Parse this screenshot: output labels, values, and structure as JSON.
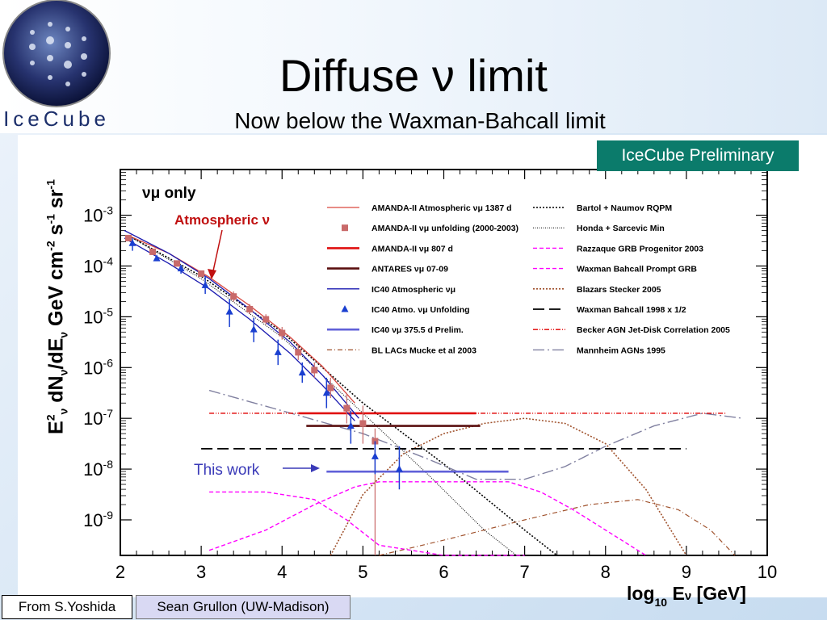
{
  "slide": {
    "title": "Diffuse ν limit",
    "subtitle": "Now below the Waxman-Bahcall limit",
    "logo_text": "IceCube",
    "badge": "IceCube Preliminary",
    "footer_left": "From S.Yoshida",
    "footer_right": "Sean Grullon (UW-Madison)"
  },
  "chart_data": {
    "type": "line",
    "xlabel": "log10 Eν [GeV]",
    "ylabel": "E2ν dNν/dEν GeV cm-2 s-1 sr-1",
    "xlim": [
      2,
      10
    ],
    "ylim_log10": [
      -9.7,
      -2.1
    ],
    "x_ticks": [
      "2",
      "3",
      "4",
      "5",
      "6",
      "7",
      "8",
      "9",
      "10"
    ],
    "y_ticks": [
      {
        "base": "10",
        "exp": "-3",
        "v": -3
      },
      {
        "base": "10",
        "exp": "-4",
        "v": -4
      },
      {
        "base": "10",
        "exp": "-5",
        "v": -5
      },
      {
        "base": "10",
        "exp": "-6",
        "v": -6
      },
      {
        "base": "10",
        "exp": "-7",
        "v": -7
      },
      {
        "base": "10",
        "exp": "-8",
        "v": -8
      },
      {
        "base": "10",
        "exp": "-9",
        "v": -9
      }
    ],
    "annotations": {
      "numu_only": "νμ only",
      "atmospheric": "Atmospheric ν",
      "this_work": "This work"
    },
    "legend": [
      {
        "name": "AMANDA-II Atmospheric νμ 1387 d",
        "style": "solid",
        "color": "#d9473f",
        "marker": ""
      },
      {
        "name": "AMANDA-II νμ unfolding (2000-2003)",
        "style": "marker",
        "color": "#c96a6a",
        "marker": "square"
      },
      {
        "name": "AMANDA-II νμ 807 d",
        "style": "solid-thick",
        "color": "#e01010",
        "marker": ""
      },
      {
        "name": "ANTARES νμ 07-09",
        "style": "solid-thick",
        "color": "#5a0f0f",
        "marker": ""
      },
      {
        "name": "IC40 Atmospheric νμ",
        "style": "solid",
        "color": "#1a1ab0",
        "marker": ""
      },
      {
        "name": "IC40 Atmo. νμ Unfolding",
        "style": "marker",
        "color": "#1a3fd0",
        "marker": "triangle"
      },
      {
        "name": "IC40 νμ 375.5 d Prelim.",
        "style": "solid-thick",
        "color": "#6060d8",
        "marker": ""
      },
      {
        "name": "BL LACs Mucke et al 2003",
        "style": "dashdot",
        "color": "#a0522d",
        "marker": ""
      },
      {
        "name": "Bartol + Naumov RQPM",
        "style": "dotted",
        "color": "#000000",
        "marker": ""
      },
      {
        "name": "Honda + Sarcevic Min",
        "style": "fine-dotted",
        "color": "#000000",
        "marker": ""
      },
      {
        "name": "Razzaque GRB Progenitor 2003",
        "style": "dashed",
        "color": "#ff00ff",
        "marker": ""
      },
      {
        "name": "Waxman Bahcall Prompt GRB",
        "style": "dashed",
        "color": "#ff00ff",
        "marker": ""
      },
      {
        "name": "Blazars Stecker 2005",
        "style": "dotted",
        "color": "#a0522d",
        "marker": ""
      },
      {
        "name": "Waxman Bahcall 1998 x 1/2",
        "style": "longdash",
        "color": "#000000",
        "marker": ""
      },
      {
        "name": "Becker AGN Jet-Disk Correlation 2005",
        "style": "dashdotdot",
        "color": "#e00000",
        "marker": ""
      },
      {
        "name": "Mannheim AGNs 1995",
        "style": "dashdot-long",
        "color": "#8080a0",
        "marker": ""
      }
    ],
    "series": [
      {
        "key": "amanda_atmo",
        "x": [
          2.1,
          2.6,
          3.1,
          3.6,
          4.1,
          4.5,
          4.9
        ],
        "y": [
          -3.4,
          -3.75,
          -4.22,
          -4.78,
          -5.4,
          -5.98,
          -6.7
        ]
      },
      {
        "key": "ic40_atmo_upper",
        "x": [
          2.05,
          2.6,
          3.1,
          3.6,
          4.1,
          4.5,
          4.95
        ],
        "y": [
          -3.3,
          -3.75,
          -4.25,
          -4.85,
          -5.5,
          -6.15,
          -7.0
        ]
      },
      {
        "key": "ic40_atmo_lower",
        "x": [
          2.05,
          2.6,
          3.1,
          3.6,
          4.1,
          4.5,
          4.9
        ],
        "y": [
          -3.45,
          -3.95,
          -4.45,
          -5.05,
          -5.72,
          -6.35,
          -7.05
        ]
      },
      {
        "key": "bartol",
        "x": [
          2.1,
          3.0,
          4.0,
          5.0,
          6.0,
          7.0,
          7.4
        ],
        "y": [
          -3.4,
          -4.2,
          -5.3,
          -6.7,
          -7.9,
          -9.2,
          -9.7
        ]
      },
      {
        "key": "honda",
        "x": [
          2.1,
          3.0,
          4.0,
          5.0,
          5.8,
          6.5,
          6.9
        ],
        "y": [
          -3.4,
          -4.25,
          -5.4,
          -6.9,
          -8.1,
          -9.2,
          -9.7
        ]
      },
      {
        "key": "amanda_unfold",
        "x": [
          2.1,
          2.4,
          2.7,
          3.0,
          3.4,
          3.6,
          3.8,
          4.0,
          4.2,
          4.4,
          4.6,
          4.8,
          5.0,
          5.15
        ],
        "y": [
          -3.45,
          -3.72,
          -3.95,
          -4.15,
          -4.6,
          -4.85,
          -5.05,
          -5.32,
          -5.7,
          -6.05,
          -6.4,
          -6.8,
          -7.1,
          -7.45
        ]
      },
      {
        "key": "amanda_unfold_err_lo",
        "x": [
          2.1,
          2.4,
          2.7,
          3.0,
          3.4,
          3.6,
          3.8,
          4.0,
          4.2,
          4.4,
          4.6,
          4.8,
          5.0,
          5.15
        ],
        "y": [
          -3.5,
          -3.77,
          -4.0,
          -4.2,
          -4.7,
          -4.95,
          -5.15,
          -5.45,
          -5.85,
          -6.2,
          -6.6,
          -7.1,
          -7.5,
          -9.7
        ]
      },
      {
        "key": "amanda_unfold_err_hi",
        "x": [
          2.1,
          2.4,
          2.7,
          3.0,
          3.4,
          3.6,
          3.8,
          4.0,
          4.2,
          4.4,
          4.6,
          4.8,
          5.0,
          5.15
        ],
        "y": [
          -3.4,
          -3.67,
          -3.9,
          -4.1,
          -4.5,
          -4.75,
          -4.95,
          -5.2,
          -5.55,
          -5.9,
          -6.2,
          -6.5,
          -6.75,
          -7.2
        ]
      },
      {
        "key": "ic40_unfold",
        "x": [
          2.15,
          2.45,
          2.75,
          3.05,
          3.35,
          3.65,
          3.95,
          4.25,
          4.55,
          4.85,
          5.15,
          5.45
        ],
        "y": [
          -3.55,
          -3.85,
          -4.05,
          -4.38,
          -4.9,
          -5.25,
          -5.7,
          -6.1,
          -6.5,
          -7.15,
          -7.75,
          -8.0
        ]
      },
      {
        "key": "ic40_unfold_err",
        "lo": [
          -3.7,
          -3.9,
          -4.15,
          -4.55,
          -5.2,
          -5.5,
          -5.95,
          -6.3,
          -6.8,
          -7.5,
          -8.1,
          -8.4
        ],
        "hi": [
          -3.45,
          -3.8,
          -3.98,
          -4.2,
          -4.65,
          -5.02,
          -5.45,
          -5.9,
          -6.2,
          -6.85,
          -7.45,
          -7.55
        ]
      },
      {
        "key": "wb_half",
        "x": [
          3.0,
          9.0
        ],
        "y": [
          -7.6,
          -7.6
        ]
      },
      {
        "key": "becker",
        "x": [
          3.1,
          9.5
        ],
        "y": [
          -6.9,
          -6.9
        ]
      },
      {
        "key": "amanda_807",
        "x": [
          4.2,
          6.4
        ],
        "y": [
          -6.9,
          -6.9
        ]
      },
      {
        "key": "antares",
        "x": [
          4.3,
          6.45
        ],
        "y": [
          -7.15,
          -7.15
        ]
      },
      {
        "key": "ic40_375",
        "x": [
          4.55,
          6.8
        ],
        "y": [
          -8.05,
          -8.05
        ]
      },
      {
        "key": "mannheim",
        "x": [
          3.1,
          4.0,
          5.0,
          5.8,
          6.4,
          7.0,
          7.5,
          8.0,
          8.6,
          9.2,
          9.7
        ],
        "y": [
          -6.45,
          -6.85,
          -7.3,
          -7.8,
          -8.2,
          -8.2,
          -7.95,
          -7.55,
          -7.15,
          -6.9,
          -7.0
        ]
      },
      {
        "key": "razzaque",
        "x": [
          3.1,
          3.8,
          4.4,
          4.8,
          5.2,
          6.0,
          6.6,
          7.0
        ],
        "y": [
          -8.45,
          -8.45,
          -8.6,
          -9.0,
          -9.5,
          -9.7,
          -9.7,
          -9.7
        ]
      },
      {
        "key": "wb_prompt",
        "x": [
          3.1,
          3.8,
          4.4,
          4.9,
          5.2,
          6.8,
          7.2,
          7.6,
          8.0,
          8.5
        ],
        "y": [
          -9.6,
          -9.2,
          -8.7,
          -8.35,
          -8.25,
          -8.25,
          -8.45,
          -8.8,
          -9.2,
          -9.7
        ]
      },
      {
        "key": "blazars",
        "x": [
          4.6,
          5.0,
          5.5,
          6.0,
          6.5,
          7.0,
          7.5,
          8.0,
          8.5,
          9.0
        ],
        "y": [
          -9.7,
          -8.5,
          -7.7,
          -7.3,
          -7.1,
          -7.0,
          -7.1,
          -7.5,
          -8.4,
          -9.7
        ]
      },
      {
        "key": "bl_lacs",
        "x": [
          5.2,
          6.0,
          7.0,
          7.8,
          8.4,
          8.9,
          9.3,
          9.6
        ],
        "y": [
          -9.7,
          -9.4,
          -9.0,
          -8.7,
          -8.6,
          -8.8,
          -9.2,
          -9.7
        ]
      }
    ]
  }
}
